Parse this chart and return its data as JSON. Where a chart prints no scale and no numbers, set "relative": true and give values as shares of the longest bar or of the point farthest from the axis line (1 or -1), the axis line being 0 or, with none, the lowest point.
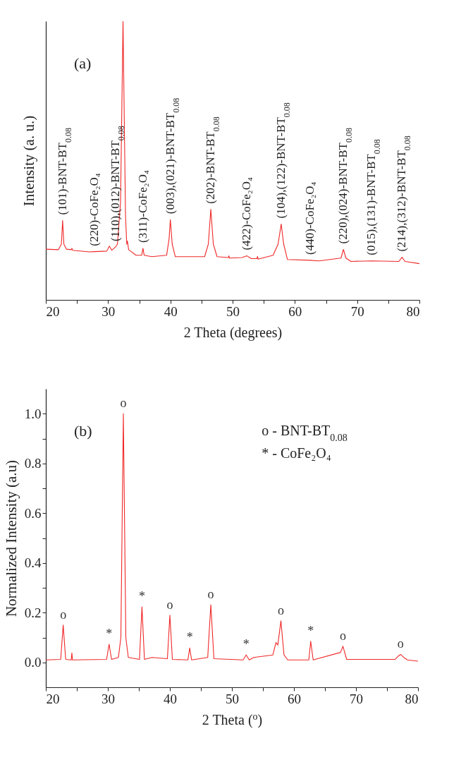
{
  "chart_data": [
    {
      "type": "line",
      "xlabel": "2 Theta (degrees)",
      "ylabel": "Intensity (a. u.)",
      "relative": true,
      "tick_labels": "x",
      "color": "#f02828",
      "xlim": [
        20,
        80
      ],
      "xticks": [
        20,
        {
          "value": 25,
          "label": null
        },
        30,
        {
          "value": 35,
          "label": null
        },
        40,
        {
          "value": 45,
          "label": null
        },
        50,
        {
          "value": 55,
          "label": null
        },
        60,
        {
          "value": 65,
          "label": null
        },
        70,
        {
          "value": 75,
          "label": null
        },
        80
      ],
      "x": [
        20,
        22.0,
        22.5,
        22.7,
        22.9,
        23.3,
        24.1,
        24.2,
        24.3,
        27,
        27.8,
        29.8,
        30.2,
        30.6,
        31.2,
        31.5,
        32.0,
        32.4,
        32.8,
        33.0,
        33.1,
        33.3,
        34.5,
        35.4,
        35.6,
        35.8,
        37,
        39.4,
        39.8,
        40.0,
        40.3,
        40.8,
        45.5,
        46.1,
        46.5,
        46.9,
        47.5,
        49.3,
        49.4,
        49.5,
        51.5,
        52.3,
        53.0,
        53.9,
        54.0,
        54.1,
        56.5,
        57.3,
        57.8,
        58.2,
        58.8,
        62.4,
        63.9,
        67.4,
        67.8,
        68.2,
        69,
        72.3,
        76.7,
        77.2,
        77.7,
        80
      ],
      "values": [
        0.182,
        0.18,
        0.2,
        0.285,
        0.2,
        0.182,
        0.18,
        0.185,
        0.178,
        0.172,
        0.173,
        0.175,
        0.193,
        0.178,
        0.19,
        0.2,
        0.35,
        1.0,
        0.3,
        0.2,
        0.211,
        0.18,
        0.16,
        0.16,
        0.185,
        0.16,
        0.155,
        0.16,
        0.22,
        0.288,
        0.2,
        0.155,
        0.155,
        0.2,
        0.325,
        0.2,
        0.155,
        0.152,
        0.158,
        0.15,
        0.152,
        0.158,
        0.148,
        0.148,
        0.156,
        0.146,
        0.16,
        0.2,
        0.272,
        0.2,
        0.145,
        0.142,
        0.14,
        0.15,
        0.181,
        0.15,
        0.138,
        0.14,
        0.138,
        0.153,
        0.138,
        0.13
      ],
      "annotations": [
        "(a)",
        {
          "text": "(101)-BNT-BT$_{0.08}$",
          "x": 22.7,
          "y": 0.285
        },
        {
          "text": "(220)-CoFe₂O₄",
          "x": 27.8,
          "y": 0.173
        },
        {
          "text": "(110),(012)-BNT-BT$_{0.08}$",
          "x": 31.2,
          "y": 0.19
        },
        {
          "text": "(311)-CoFe₂O₄",
          "x": 35.6,
          "y": 0.185
        },
        {
          "text": "(003),(021)-BNT-BT$_{0.08}$",
          "x": 40.0,
          "y": 0.288
        },
        {
          "text": "(202)-BNT-BT$_{0.08}$",
          "x": 46.5,
          "y": 0.325
        },
        {
          "text": "(422)-CoFe₂O₄",
          "x": 52.3,
          "y": 0.158
        },
        {
          "text": "(104),(122)-BNT-BT$_{0.08}$",
          "x": 57.8,
          "y": 0.272
        },
        {
          "text": "(440)-CoFe₂O₄",
          "x": 62.4,
          "y": 0.142
        },
        {
          "text": "(220),(024)-BNT-BT$_{0.08}$",
          "x": 67.8,
          "y": 0.181
        },
        {
          "text": "(015),(131)-BNT-BT$_{0.08}$",
          "x": 72.3,
          "y": 0.14
        },
        {
          "text": "(214),(312)-BNT-BT$_{0.08}$",
          "x": 77.2,
          "y": 0.153
        }
      ]
    },
    {
      "type": "line",
      "xlabel": "2 Theta ($^{o}$)",
      "ylabel": "Normalized Intensity (a.u)",
      "color": "#f02828",
      "xlim": [
        20,
        80
      ],
      "xticks": [
        20,
        {
          "value": 25,
          "label": null
        },
        30,
        {
          "value": 35,
          "label": null
        },
        40,
        {
          "value": 45,
          "label": null
        },
        50,
        {
          "value": 55,
          "label": null
        },
        60,
        {
          "value": 65,
          "label": null
        },
        70,
        {
          "value": 75,
          "label": null
        },
        80
      ],
      "ylim": [
        -0.1,
        1.1
      ],
      "yticks": [
        {
          "value": 0,
          "label": "0.0"
        },
        {
          "value": 0.1,
          "label": null
        },
        0.2,
        {
          "value": 0.3,
          "label": null
        },
        0.4,
        {
          "value": 0.5,
          "label": null
        },
        0.6,
        {
          "value": 0.7,
          "label": null
        },
        0.8,
        {
          "value": 0.9,
          "label": null
        },
        {
          "value": 1,
          "label": "1.0"
        }
      ],
      "x": [
        20,
        22.4,
        22.8,
        23.2,
        24.1,
        24.2,
        24.3,
        29.8,
        30.2,
        30.6,
        31.7,
        32.1,
        32.5,
        32.9,
        33.3,
        35.1,
        35.5,
        35.9,
        37.1,
        39.6,
        40.0,
        40.4,
        42.9,
        43.2,
        43.5,
        46.1,
        46.6,
        47.1,
        51.8,
        52.3,
        52.8,
        53.5,
        56.6,
        57.1,
        57.4,
        57.9,
        58.4,
        59,
        62.4,
        62.7,
        63.1,
        67.5,
        67.9,
        68.5,
        76.3,
        76.8,
        77.2,
        77.7,
        78.3,
        80
      ],
      "values": [
        0.01,
        0.012,
        0.15,
        0.012,
        0.01,
        0.038,
        0.01,
        0.012,
        0.073,
        0.012,
        0.02,
        0.1,
        1.0,
        0.1,
        0.02,
        0.012,
        0.223,
        0.012,
        0.02,
        0.015,
        0.19,
        0.012,
        0.01,
        0.058,
        0.01,
        0.02,
        0.232,
        0.015,
        0.01,
        0.03,
        0.01,
        0.02,
        0.03,
        0.08,
        0.07,
        0.167,
        0.03,
        0.01,
        0.01,
        0.085,
        0.01,
        0.04,
        0.065,
        0.012,
        0.012,
        0.025,
        0.032,
        0.02,
        0.01,
        0.005
      ],
      "annotations": [
        "(b)",
        "o - BNT-BT$_{0.08}$",
        "* - CoFe₂O₄",
        {
          "text": "o",
          "x": 22.8,
          "y": 0.15
        },
        {
          "text": "*",
          "x": 30.2,
          "y": 0.073
        },
        {
          "text": "o",
          "x": 32.5,
          "y": 1.0
        },
        {
          "text": "*",
          "x": 35.5,
          "y": 0.223
        },
        {
          "text": "o",
          "x": 40.0,
          "y": 0.19
        },
        {
          "text": "*",
          "x": 43.2,
          "y": 0.058
        },
        {
          "text": "o",
          "x": 46.6,
          "y": 0.232
        },
        {
          "text": "*",
          "x": 52.3,
          "y": 0.03
        },
        {
          "text": "o",
          "x": 57.9,
          "y": 0.167
        },
        {
          "text": "*",
          "x": 62.7,
          "y": 0.085
        },
        {
          "text": "o",
          "x": 67.9,
          "y": 0.065
        },
        {
          "text": "o",
          "x": 77.2,
          "y": 0.032
        }
      ]
    }
  ]
}
